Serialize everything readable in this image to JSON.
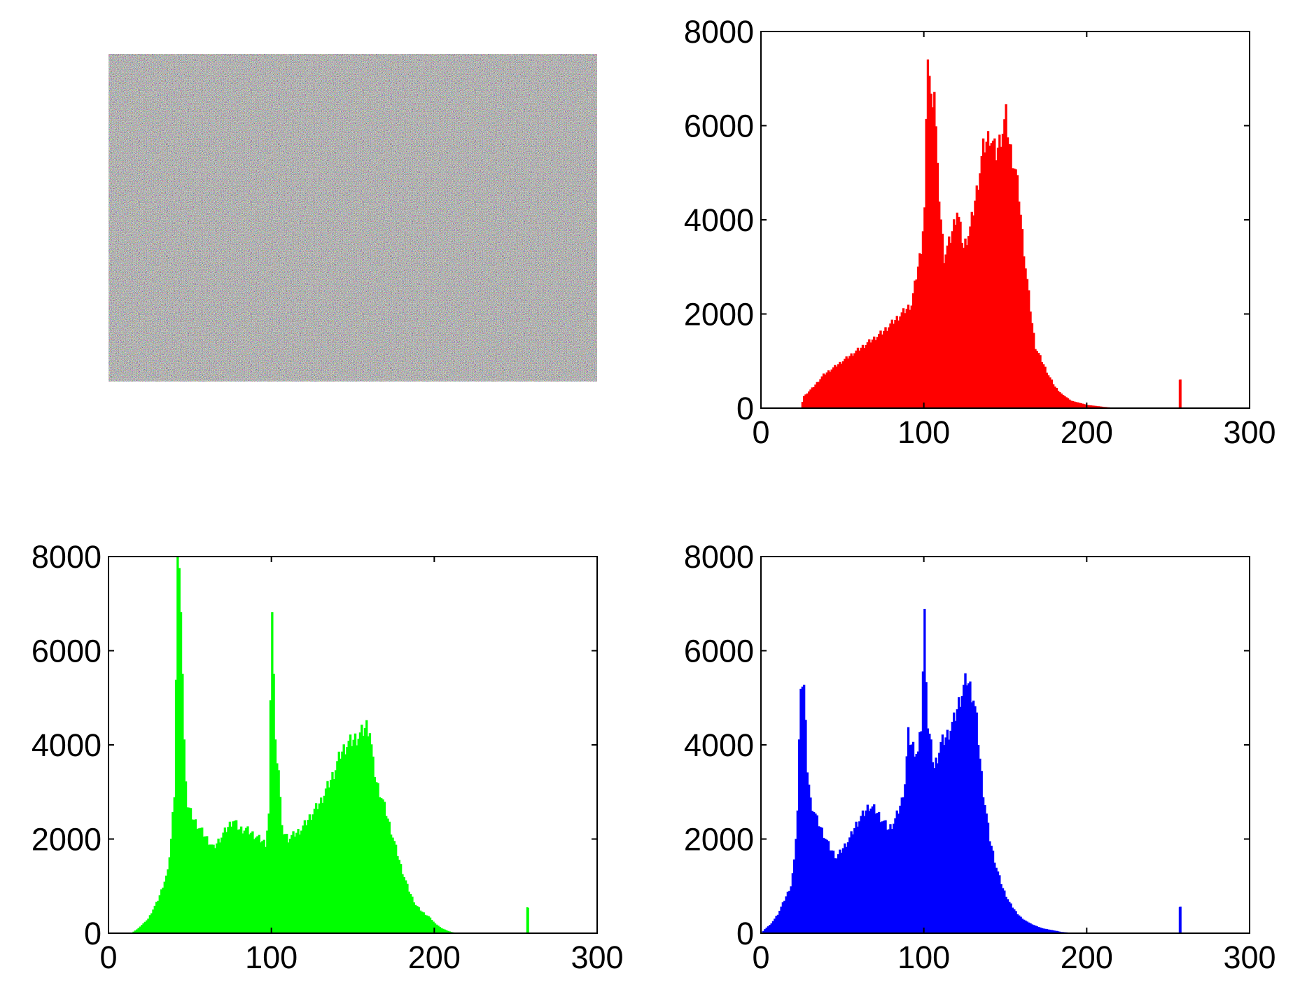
{
  "noise_image": {
    "description": "",
    "pixel_colors": [
      "#c8b84a",
      "#3a3f9e",
      "#d9d9d9",
      "#2b2b2b",
      "#6fb5c9",
      "#b8a0c8",
      "#7a7a40",
      "#e8e0c0",
      "#4a6a8a",
      "#9a5a5a",
      "#5aa05a",
      "#f0f0f0"
    ]
  },
  "chart_data": [
    {
      "type": "bar",
      "name": "red-histogram",
      "color": "#ff0000",
      "title": "",
      "xlabel": "",
      "ylabel": "",
      "xlim": [
        0,
        300
      ],
      "ylim": [
        0,
        8000
      ],
      "xticks": [
        0,
        100,
        200,
        300
      ],
      "yticks": [
        0,
        2000,
        4000,
        6000,
        8000
      ],
      "grid": false,
      "points": [
        [
          0,
          0
        ],
        [
          24,
          0
        ],
        [
          26,
          250
        ],
        [
          32,
          450
        ],
        [
          38,
          700
        ],
        [
          44,
          850
        ],
        [
          50,
          1000
        ],
        [
          56,
          1150
        ],
        [
          62,
          1300
        ],
        [
          68,
          1450
        ],
        [
          74,
          1600
        ],
        [
          80,
          1800
        ],
        [
          86,
          2000
        ],
        [
          92,
          2200
        ],
        [
          96,
          3000
        ],
        [
          98,
          3400
        ],
        [
          100,
          4200
        ],
        [
          102,
          7600
        ],
        [
          104,
          6500
        ],
        [
          106,
          6800
        ],
        [
          108,
          5000
        ],
        [
          110,
          4000
        ],
        [
          112,
          3200
        ],
        [
          116,
          3600
        ],
        [
          120,
          4200
        ],
        [
          124,
          3400
        ],
        [
          128,
          3800
        ],
        [
          132,
          4600
        ],
        [
          136,
          5500
        ],
        [
          140,
          5800
        ],
        [
          144,
          5400
        ],
        [
          148,
          5900
        ],
        [
          150,
          6200
        ],
        [
          152,
          5600
        ],
        [
          156,
          5000
        ],
        [
          158,
          4500
        ],
        [
          160,
          3700
        ],
        [
          162,
          3000
        ],
        [
          164,
          2400
        ],
        [
          166,
          1800
        ],
        [
          168,
          1300
        ],
        [
          172,
          1000
        ],
        [
          176,
          700
        ],
        [
          180,
          450
        ],
        [
          184,
          300
        ],
        [
          190,
          150
        ],
        [
          200,
          60
        ],
        [
          210,
          20
        ],
        [
          216,
          0
        ],
        [
          256,
          0
        ],
        [
          257,
          600
        ],
        [
          258,
          0
        ],
        [
          300,
          0
        ]
      ]
    },
    {
      "type": "bar",
      "name": "green-histogram",
      "color": "#00ff00",
      "title": "",
      "xlabel": "",
      "ylabel": "",
      "xlim": [
        0,
        300
      ],
      "ylim": [
        0,
        8000
      ],
      "xticks": [
        0,
        100,
        200,
        300
      ],
      "yticks": [
        0,
        2000,
        4000,
        6000,
        8000
      ],
      "grid": false,
      "points": [
        [
          0,
          0
        ],
        [
          14,
          0
        ],
        [
          18,
          100
        ],
        [
          24,
          300
        ],
        [
          30,
          700
        ],
        [
          36,
          1300
        ],
        [
          38,
          2000
        ],
        [
          40,
          3000
        ],
        [
          42,
          7900
        ],
        [
          44,
          7000
        ],
        [
          46,
          4000
        ],
        [
          48,
          2700
        ],
        [
          52,
          2400
        ],
        [
          56,
          2200
        ],
        [
          60,
          2000
        ],
        [
          64,
          1800
        ],
        [
          68,
          2000
        ],
        [
          72,
          2200
        ],
        [
          76,
          2400
        ],
        [
          80,
          2200
        ],
        [
          84,
          2200
        ],
        [
          88,
          2100
        ],
        [
          92,
          2000
        ],
        [
          96,
          1900
        ],
        [
          98,
          2500
        ],
        [
          100,
          7000
        ],
        [
          102,
          4000
        ],
        [
          104,
          3500
        ],
        [
          106,
          2200
        ],
        [
          110,
          2000
        ],
        [
          114,
          2100
        ],
        [
          118,
          2200
        ],
        [
          122,
          2400
        ],
        [
          126,
          2600
        ],
        [
          130,
          2800
        ],
        [
          134,
          3100
        ],
        [
          138,
          3400
        ],
        [
          142,
          3800
        ],
        [
          146,
          4000
        ],
        [
          150,
          4100
        ],
        [
          154,
          4200
        ],
        [
          158,
          4400
        ],
        [
          160,
          4300
        ],
        [
          162,
          3600
        ],
        [
          164,
          3200
        ],
        [
          168,
          2800
        ],
        [
          172,
          2300
        ],
        [
          176,
          1800
        ],
        [
          180,
          1300
        ],
        [
          184,
          900
        ],
        [
          188,
          600
        ],
        [
          192,
          450
        ],
        [
          196,
          350
        ],
        [
          200,
          200
        ],
        [
          204,
          100
        ],
        [
          208,
          40
        ],
        [
          212,
          0
        ],
        [
          256,
          0
        ],
        [
          257,
          550
        ],
        [
          258,
          0
        ],
        [
          300,
          0
        ]
      ]
    },
    {
      "type": "bar",
      "name": "blue-histogram",
      "color": "#0000ff",
      "title": "",
      "xlabel": "",
      "ylabel": "",
      "xlim": [
        0,
        300
      ],
      "ylim": [
        0,
        8000
      ],
      "xticks": [
        0,
        100,
        200,
        300
      ],
      "yticks": [
        0,
        2000,
        4000,
        6000,
        8000
      ],
      "grid": false,
      "points": [
        [
          0,
          0
        ],
        [
          2,
          80
        ],
        [
          6,
          200
        ],
        [
          10,
          400
        ],
        [
          14,
          700
        ],
        [
          18,
          1000
        ],
        [
          20,
          1500
        ],
        [
          22,
          2600
        ],
        [
          24,
          5400
        ],
        [
          26,
          5200
        ],
        [
          28,
          3500
        ],
        [
          30,
          2800
        ],
        [
          34,
          2400
        ],
        [
          38,
          2100
        ],
        [
          42,
          1800
        ],
        [
          46,
          1600
        ],
        [
          50,
          1800
        ],
        [
          54,
          2000
        ],
        [
          58,
          2300
        ],
        [
          62,
          2500
        ],
        [
          66,
          2700
        ],
        [
          70,
          2600
        ],
        [
          74,
          2400
        ],
        [
          78,
          2200
        ],
        [
          82,
          2400
        ],
        [
          86,
          2800
        ],
        [
          88,
          3200
        ],
        [
          90,
          4200
        ],
        [
          92,
          4000
        ],
        [
          96,
          3800
        ],
        [
          98,
          4400
        ],
        [
          100,
          6700
        ],
        [
          102,
          4400
        ],
        [
          106,
          3500
        ],
        [
          110,
          4000
        ],
        [
          114,
          4200
        ],
        [
          118,
          4500
        ],
        [
          122,
          5000
        ],
        [
          126,
          5400
        ],
        [
          128,
          5200
        ],
        [
          130,
          5000
        ],
        [
          132,
          4500
        ],
        [
          134,
          3700
        ],
        [
          136,
          3000
        ],
        [
          138,
          2500
        ],
        [
          140,
          2000
        ],
        [
          144,
          1400
        ],
        [
          148,
          950
        ],
        [
          152,
          650
        ],
        [
          156,
          450
        ],
        [
          160,
          300
        ],
        [
          166,
          180
        ],
        [
          172,
          100
        ],
        [
          178,
          60
        ],
        [
          184,
          20
        ],
        [
          190,
          0
        ],
        [
          256,
          0
        ],
        [
          257,
          550
        ],
        [
          258,
          0
        ],
        [
          300,
          0
        ]
      ]
    }
  ]
}
